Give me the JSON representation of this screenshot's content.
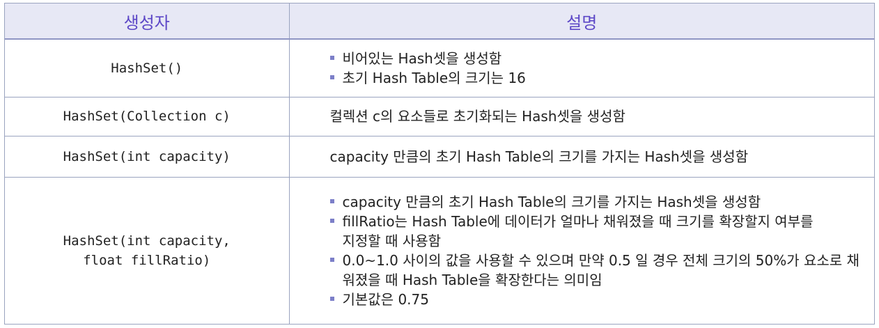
{
  "headers": {
    "constructor": "생성자",
    "description": "설명"
  },
  "rows": [
    {
      "constructor": [
        "HashSet()"
      ],
      "bullets": [
        "비어있는 Hash셋을 생성함",
        "초기 Hash Table의 크기는 16"
      ]
    },
    {
      "constructor": [
        "HashSet(Collection c)"
      ],
      "text": "컬렉션 c의 요소들로 초기화되는 Hash셋을 생성함"
    },
    {
      "constructor": [
        "HashSet(int capacity)"
      ],
      "text": "capacity 만큼의 초기 Hash Table의 크기를 가지는 Hash셋을 생성함"
    },
    {
      "constructor": [
        "HashSet(int capacity,",
        "float fillRatio)"
      ],
      "bullets": [
        "capacity 만큼의 초기 Hash Table의 크기를 가지는 Hash셋을 생성함",
        "fillRatio는 Hash Table에 데이터가 얼마나 채워졌을 때 크기를 확장할지 여부를 지정할 때 사용함",
        "0.0~1.0 사이의 값을 사용할 수 있으며 만약 0.5 일 경우 전체 크기의 50%가 요소로 채워졌을 때 Hash Table을 확장한다는 의미임",
        "기본값은 0.75"
      ]
    }
  ],
  "colors": {
    "header_bg": "#e7e8f5",
    "header_text": "#5d48c7",
    "bullet": "#7c7fc8",
    "border": "#9aa3bf"
  }
}
